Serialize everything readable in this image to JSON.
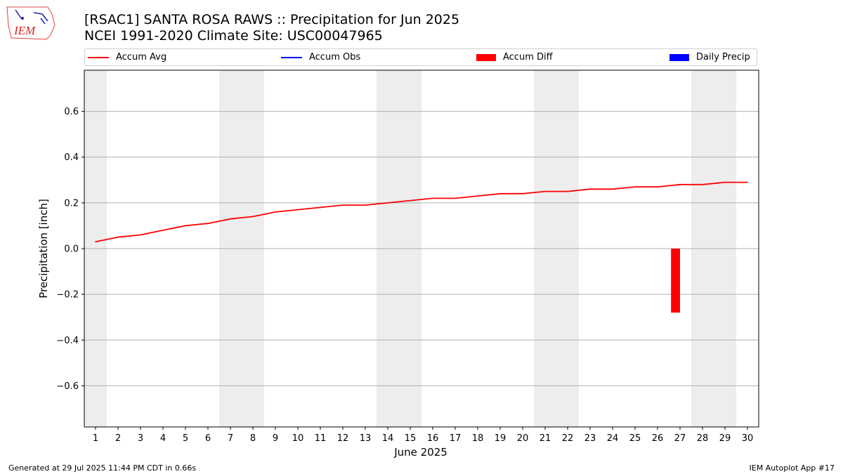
{
  "header": {
    "title_line1": "[RSAC1] SANTA ROSA RAWS :: Precipitation for Jun 2025",
    "title_line2": "NCEI 1991-2020 Climate Site: USC00047965",
    "logo_text": "IEM"
  },
  "legend": {
    "items": [
      {
        "label": "Accum Avg",
        "color": "#ff0000",
        "kind": "line"
      },
      {
        "label": "Accum Obs",
        "color": "#0000ff",
        "kind": "line"
      },
      {
        "label": "Accum Diff",
        "color": "#ff0000",
        "kind": "box"
      },
      {
        "label": "Daily Precip",
        "color": "#0000ff",
        "kind": "box"
      }
    ]
  },
  "chart_data": {
    "type": "line",
    "title": "[RSAC1] SANTA ROSA RAWS :: Precipitation for Jun 2025",
    "xlabel": "June 2025",
    "ylabel": "Precipitation [inch]",
    "x": [
      1,
      2,
      3,
      4,
      5,
      6,
      7,
      8,
      9,
      10,
      11,
      12,
      13,
      14,
      15,
      16,
      17,
      18,
      19,
      20,
      21,
      22,
      23,
      24,
      25,
      26,
      27,
      28,
      29,
      30
    ],
    "xlim": [
      0.5,
      30.5
    ],
    "ylim": [
      -0.78,
      0.78
    ],
    "yticks": [
      -0.6,
      -0.4,
      -0.2,
      0.0,
      0.2,
      0.4,
      0.6
    ],
    "ytick_labels": [
      "−0.6",
      "−0.4",
      "−0.2",
      "0.0",
      "0.2",
      "0.4",
      "0.6"
    ],
    "grid": "horizontal",
    "weekend_shading": [
      [
        0.5,
        1.5
      ],
      [
        6.5,
        8.5
      ],
      [
        13.5,
        15.5
      ],
      [
        20.5,
        22.5
      ],
      [
        27.5,
        29.5
      ]
    ],
    "series": [
      {
        "name": "Accum Avg",
        "kind": "line",
        "color": "#ff0000",
        "values": [
          0.03,
          0.05,
          0.06,
          0.08,
          0.1,
          0.11,
          0.13,
          0.14,
          0.16,
          0.17,
          0.18,
          0.19,
          0.19,
          0.2,
          0.21,
          0.22,
          0.22,
          0.23,
          0.24,
          0.24,
          0.25,
          0.25,
          0.26,
          0.26,
          0.27,
          0.27,
          0.28,
          0.28,
          0.29,
          0.29
        ]
      },
      {
        "name": "Accum Diff",
        "kind": "bar",
        "color": "#ff0000",
        "points": [
          {
            "x": 26.8,
            "value": -0.28
          }
        ]
      }
    ]
  },
  "footer": {
    "generated": "Generated at 29 Jul 2025 11:44 PM CDT in 0.66s",
    "app": "IEM Autoplot App #17"
  }
}
